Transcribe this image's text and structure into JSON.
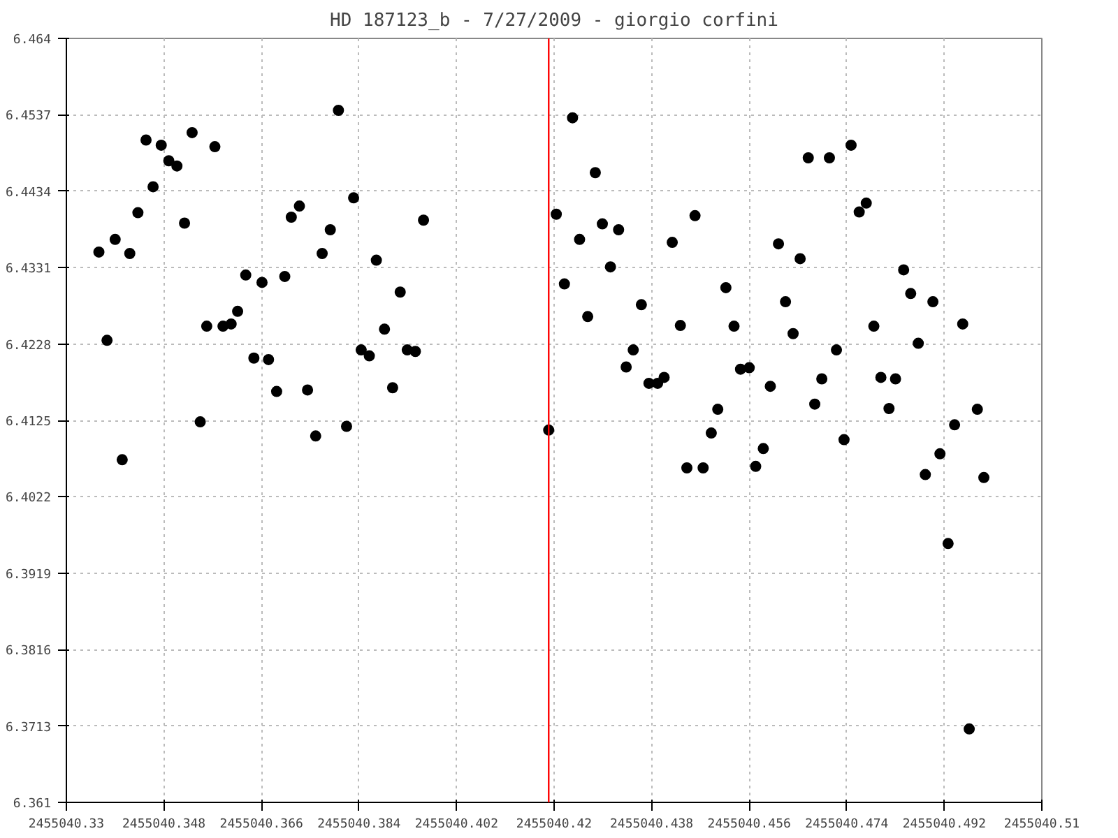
{
  "chart_data": {
    "type": "scatter",
    "title": "HD 187123_b - 7/27/2009 - giorgio corfini",
    "xlim": [
      2455040.33,
      2455040.51
    ],
    "ylim": [
      6.361,
      6.464
    ],
    "xticks": [
      2455040.33,
      2455040.348,
      2455040.366,
      2455040.384,
      2455040.402,
      2455040.42,
      2455040.438,
      2455040.456,
      2455040.474,
      2455040.492,
      2455040.51
    ],
    "yticks": [
      6.361,
      6.3713,
      6.3816,
      6.3919,
      6.4022,
      6.4125,
      6.4228,
      6.4331,
      6.4434,
      6.4537,
      6.464
    ],
    "grid": true,
    "marker": "circle",
    "ref_lines": [
      {
        "axis": "x",
        "value": 2455040.419,
        "color": "#ff0000"
      }
    ],
    "series": [
      {
        "color": "#000000",
        "x": [
          2455040.336,
          2455040.3375,
          2455040.339,
          2455040.3403,
          2455040.3417,
          2455040.3432,
          2455040.3447,
          2455040.346,
          2455040.3475,
          2455040.3489,
          2455040.3504,
          2455040.3518,
          2455040.3532,
          2455040.3547,
          2455040.3559,
          2455040.3574,
          2455040.3589,
          2455040.3604,
          2455040.3616,
          2455040.3631,
          2455040.3646,
          2455040.3661,
          2455040.3673,
          2455040.3688,
          2455040.3703,
          2455040.3715,
          2455040.373,
          2455040.3745,
          2455040.376,
          2455040.3772,
          2455040.3787,
          2455040.3802,
          2455040.3817,
          2455040.383,
          2455040.3844,
          2455040.3859,
          2455040.3872,
          2455040.3887,
          2455040.3902,
          2455040.3916,
          2455040.3929,
          2455040.3944,
          2455040.3959,
          2455040.419,
          2455040.4204,
          2455040.4219,
          2455040.4234,
          2455040.4247,
          2455040.4262,
          2455040.4276,
          2455040.4289,
          2455040.4304,
          2455040.4319,
          2455040.4333,
          2455040.4346,
          2455040.4361,
          2455040.4375,
          2455040.4391,
          2455040.4403,
          2455040.4418,
          2455040.4433,
          2455040.4445,
          2455040.446,
          2455040.4475,
          2455040.449,
          2455040.4502,
          2455040.4517,
          2455040.4532,
          2455040.4544,
          2455040.456,
          2455040.4572,
          2455040.4586,
          2455040.4599,
          2455040.4614,
          2455040.4627,
          2455040.4641,
          2455040.4654,
          2455040.4669,
          2455040.4681,
          2455040.4694,
          2455040.4708,
          2455040.4721,
          2455040.4735,
          2455040.4748,
          2455040.4763,
          2455040.4776,
          2455040.479,
          2455040.4803,
          2455040.4818,
          2455040.483,
          2455040.4845,
          2455040.4858,
          2455040.4872,
          2455040.4885,
          2455040.4899,
          2455040.4912,
          2455040.4927,
          2455040.4939,
          2455040.4954,
          2455040.4966,
          2455040.4981,
          2455040.4993
        ],
        "values": [
          6.4352,
          6.4233,
          6.4369,
          6.4072,
          6.435,
          6.4405,
          6.4503,
          6.444,
          6.4496,
          6.4475,
          6.4468,
          6.4391,
          6.4513,
          6.4123,
          6.4252,
          6.4494,
          6.4252,
          6.4255,
          6.4272,
          6.4321,
          6.4209,
          6.4311,
          6.4207,
          6.4164,
          6.4319,
          6.4399,
          6.4414,
          6.4166,
          6.4104,
          6.435,
          6.4382,
          6.4543,
          6.4117,
          6.4425,
          6.422,
          6.4212,
          6.4341,
          6.4248,
          6.4169,
          6.4298,
          6.422,
          6.4218,
          6.4395,
          6.4112,
          6.4403,
          6.4309,
          6.4533,
          6.4369,
          6.4265,
          6.4459,
          6.439,
          6.4332,
          6.4382,
          6.4197,
          6.422,
          6.4281,
          6.4175,
          6.4175,
          6.4183,
          6.4365,
          6.4253,
          6.4061,
          6.4401,
          6.4061,
          6.4108,
          6.414,
          6.4304,
          6.4252,
          6.4194,
          6.4196,
          6.4063,
          6.4087,
          6.4171,
          6.4363,
          6.4285,
          6.4242,
          6.4343,
          6.4479,
          6.4147,
          6.4181,
          6.4479,
          6.422,
          6.4099,
          6.4496,
          6.4406,
          6.4418,
          6.4252,
          6.4183,
          6.4141,
          6.4181,
          6.4328,
          6.4296,
          6.4229,
          6.4052,
          6.4285,
          6.408,
          6.3959,
          6.4119,
          6.4255,
          6.3709,
          6.414,
          6.4048
        ]
      }
    ]
  }
}
